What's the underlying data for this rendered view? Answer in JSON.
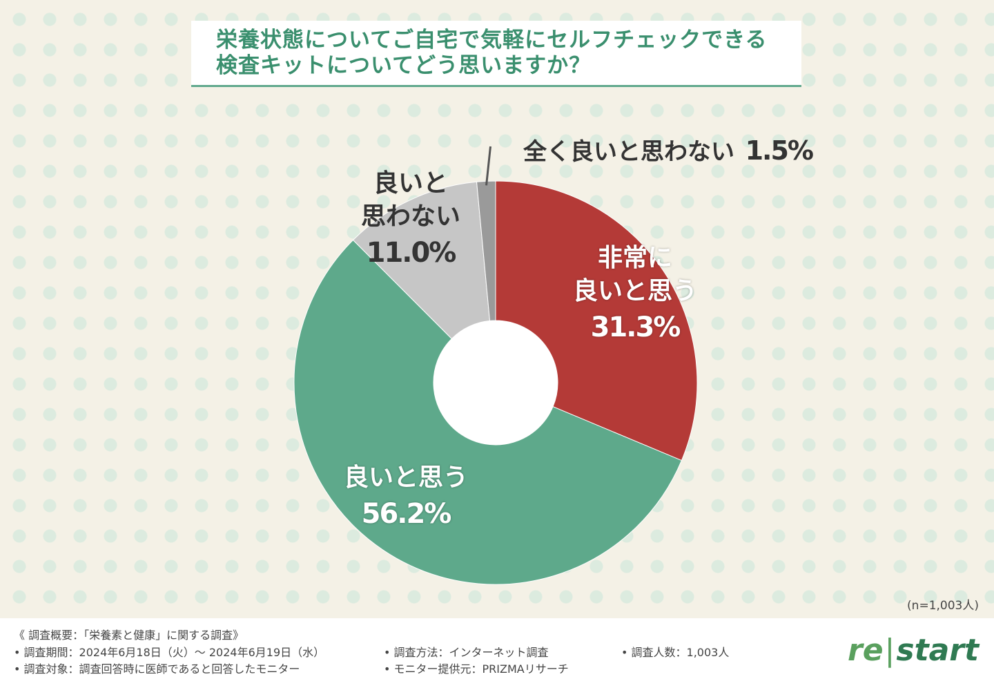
{
  "header": {
    "title_line1": "栄養状態についてご自宅で気軽にセルフチェックできる",
    "title_line2": "検査キットについてどう思いますか？"
  },
  "chart_data": {
    "type": "pie",
    "donut": true,
    "title": "栄養状態についてご自宅で気軽にセルフチェックできる検査キットについてどう思いますか？",
    "slices": [
      {
        "label": "非常に良いと思う",
        "value": 31.3,
        "value_label": "31.3%",
        "color": "#b43a37"
      },
      {
        "label": "良いと思う",
        "value": 56.2,
        "value_label": "56.2%",
        "color": "#5ea98b"
      },
      {
        "label": "良いと思わない",
        "value": 11.0,
        "value_label": "11.0%",
        "color": "#c6c6c6"
      },
      {
        "label": "全く良いと思わない",
        "value": 1.5,
        "value_label": "1.5%",
        "color": "#9a9a9a"
      }
    ],
    "sample_size": "(n=1,003人)"
  },
  "labels": {
    "slice0_line1": "非常に",
    "slice0_line2": "良いと思う",
    "slice1_line1": "良いと思う",
    "slice2_line1": "良いと",
    "slice2_line2": "思わない",
    "slice3_line1": "全く良いと思わない"
  },
  "footer": {
    "overview": "《 調査概要：「栄養素と健康」に関する調査》",
    "period": "• 調査期間：2024年6月18日（火）～ 2024年6月19日（水）",
    "target": "• 調査対象：調査回答時に医師であると回答したモニター",
    "method": "• 調査方法：インターネット調査",
    "provider": "• モニター提供元：PRIZMAリサーチ",
    "count": "• 調査人数：1,003人",
    "logo_left": "re",
    "logo_sep": "|",
    "logo_right": "start"
  }
}
